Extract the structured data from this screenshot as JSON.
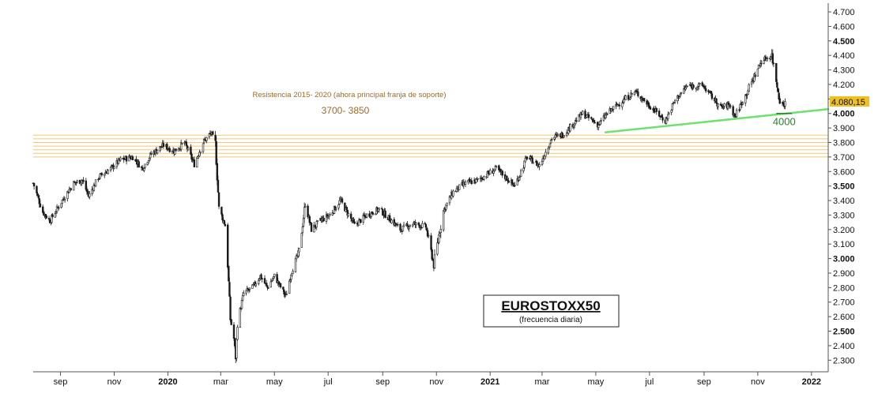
{
  "chart_data": {
    "type": "candlestick",
    "title": "EUROSTOXX50",
    "subtitle": "(frecuencia diaria)",
    "ylim": [
      2220,
      4760
    ],
    "y_ticks": [
      {
        "value": 2300,
        "label": "2.300",
        "bold": false
      },
      {
        "value": 2400,
        "label": "2.400",
        "bold": false
      },
      {
        "value": 2500,
        "label": "2.500",
        "bold": true
      },
      {
        "value": 2600,
        "label": "2.600",
        "bold": false
      },
      {
        "value": 2700,
        "label": "2.700",
        "bold": false
      },
      {
        "value": 2800,
        "label": "2.800",
        "bold": false
      },
      {
        "value": 2900,
        "label": "2.900",
        "bold": false
      },
      {
        "value": 3000,
        "label": "3.000",
        "bold": true
      },
      {
        "value": 3100,
        "label": "3.100",
        "bold": false
      },
      {
        "value": 3200,
        "label": "3.200",
        "bold": false
      },
      {
        "value": 3300,
        "label": "3.300",
        "bold": false
      },
      {
        "value": 3400,
        "label": "3.400",
        "bold": false
      },
      {
        "value": 3500,
        "label": "3.500",
        "bold": true
      },
      {
        "value": 3600,
        "label": "3.600",
        "bold": false
      },
      {
        "value": 3700,
        "label": "3.700",
        "bold": false
      },
      {
        "value": 3800,
        "label": "3.800",
        "bold": false
      },
      {
        "value": 3900,
        "label": "3.900",
        "bold": false
      },
      {
        "value": 4000,
        "label": "4.000",
        "bold": true
      },
      {
        "value": 4100,
        "label": "4.100",
        "bold": false
      },
      {
        "value": 4200,
        "label": "4.200",
        "bold": false
      },
      {
        "value": 4300,
        "label": "4.300",
        "bold": false
      },
      {
        "value": 4400,
        "label": "4.400",
        "bold": false
      },
      {
        "value": 4500,
        "label": "4.500",
        "bold": true
      },
      {
        "value": 4600,
        "label": "4.600",
        "bold": false
      },
      {
        "value": 4700,
        "label": "4.700",
        "bold": false
      }
    ],
    "x_range": [
      "2019-08-01",
      "2022-01-20"
    ],
    "x_ticks": [
      {
        "date": "2019-09-01",
        "label": "sep",
        "bold": false
      },
      {
        "date": "2019-11-01",
        "label": "nov",
        "bold": false
      },
      {
        "date": "2020-01-01",
        "label": "2020",
        "bold": true
      },
      {
        "date": "2020-03-01",
        "label": "mar",
        "bold": false
      },
      {
        "date": "2020-05-01",
        "label": "may",
        "bold": false
      },
      {
        "date": "2020-07-01",
        "label": "jul",
        "bold": false
      },
      {
        "date": "2020-09-01",
        "label": "sep",
        "bold": false
      },
      {
        "date": "2020-11-01",
        "label": "nov",
        "bold": false
      },
      {
        "date": "2021-01-01",
        "label": "2021",
        "bold": true
      },
      {
        "date": "2021-03-01",
        "label": "mar",
        "bold": false
      },
      {
        "date": "2021-05-01",
        "label": "may",
        "bold": false
      },
      {
        "date": "2021-07-01",
        "label": "jul",
        "bold": false
      },
      {
        "date": "2021-09-01",
        "label": "sep",
        "bold": false
      },
      {
        "date": "2021-11-01",
        "label": "nov",
        "bold": false
      },
      {
        "date": "2022-01-01",
        "label": "2022",
        "bold": true
      }
    ],
    "series": [
      {
        "values": [
          [
            "2019-08-01",
            3520
          ],
          [
            "2019-08-12",
            3320
          ],
          [
            "2019-08-20",
            3260
          ],
          [
            "2019-08-27",
            3330
          ],
          [
            "2019-09-05",
            3420
          ],
          [
            "2019-09-16",
            3520
          ],
          [
            "2019-09-26",
            3540
          ],
          [
            "2019-10-03",
            3430
          ],
          [
            "2019-10-14",
            3560
          ],
          [
            "2019-10-28",
            3620
          ],
          [
            "2019-11-08",
            3680
          ],
          [
            "2019-11-22",
            3700
          ],
          [
            "2019-12-03",
            3620
          ],
          [
            "2019-12-13",
            3720
          ],
          [
            "2019-12-27",
            3780
          ],
          [
            "2020-01-08",
            3740
          ],
          [
            "2020-01-20",
            3800
          ],
          [
            "2020-01-31",
            3650
          ],
          [
            "2020-02-10",
            3800
          ],
          [
            "2020-02-19",
            3865
          ],
          [
            "2020-02-24",
            3790
          ],
          [
            "2020-02-28",
            3350
          ],
          [
            "2020-03-06",
            3230
          ],
          [
            "2020-03-09",
            2960
          ],
          [
            "2020-03-12",
            2580
          ],
          [
            "2020-03-16",
            2450
          ],
          [
            "2020-03-18",
            2320
          ],
          [
            "2020-03-20",
            2550
          ],
          [
            "2020-03-27",
            2760
          ],
          [
            "2020-04-06",
            2800
          ],
          [
            "2020-04-15",
            2880
          ],
          [
            "2020-04-23",
            2800
          ],
          [
            "2020-05-01",
            2880
          ],
          [
            "2020-05-14",
            2740
          ],
          [
            "2020-05-20",
            2900
          ],
          [
            "2020-05-29",
            3050
          ],
          [
            "2020-06-05",
            3380
          ],
          [
            "2020-06-12",
            3200
          ],
          [
            "2020-06-22",
            3260
          ],
          [
            "2020-07-03",
            3300
          ],
          [
            "2020-07-15",
            3400
          ],
          [
            "2020-07-31",
            3230
          ],
          [
            "2020-08-14",
            3300
          ],
          [
            "2020-08-28",
            3340
          ],
          [
            "2020-09-08",
            3280
          ],
          [
            "2020-09-21",
            3200
          ],
          [
            "2020-10-05",
            3240
          ],
          [
            "2020-10-20",
            3220
          ],
          [
            "2020-10-29",
            2960
          ],
          [
            "2020-11-09",
            3330
          ],
          [
            "2020-11-20",
            3460
          ],
          [
            "2020-12-04",
            3520
          ],
          [
            "2020-12-18",
            3540
          ],
          [
            "2021-01-08",
            3620
          ],
          [
            "2021-01-29",
            3500
          ],
          [
            "2021-02-12",
            3700
          ],
          [
            "2021-02-26",
            3640
          ],
          [
            "2021-03-12",
            3830
          ],
          [
            "2021-03-26",
            3860
          ],
          [
            "2021-04-16",
            4000
          ],
          [
            "2021-05-04",
            3920
          ],
          [
            "2021-05-14",
            4000
          ],
          [
            "2021-06-01",
            4090
          ],
          [
            "2021-06-15",
            4150
          ],
          [
            "2021-06-30",
            4060
          ],
          [
            "2021-07-19",
            3950
          ],
          [
            "2021-07-30",
            4090
          ],
          [
            "2021-08-13",
            4190
          ],
          [
            "2021-08-31",
            4190
          ],
          [
            "2021-09-20",
            4040
          ],
          [
            "2021-09-30",
            4060
          ],
          [
            "2021-10-06",
            3980
          ],
          [
            "2021-10-20",
            4150
          ],
          [
            "2021-11-05",
            4360
          ],
          [
            "2021-11-17",
            4400
          ],
          [
            "2021-11-26",
            4090
          ],
          [
            "2021-11-30",
            4060
          ],
          [
            "2021-12-03",
            4080
          ]
        ]
      }
    ],
    "annotations": {
      "resistance_label": "Resistencia 2015- 2020 (ahora principal franja de soporte)",
      "resistance_zone_label": "3700- 3850",
      "resistance_zone": [
        3700,
        3850
      ],
      "support_label": "4000",
      "trendline": [
        [
          "2021-05-12",
          3870
        ],
        [
          "2022-01-20",
          4030
        ]
      ],
      "support_segment": [
        [
          "2021-11-22",
          4000
        ],
        [
          "2021-12-10",
          4000
        ]
      ],
      "last_price": 4080.15,
      "last_price_label": "4.080,15"
    },
    "colors": {
      "candles": "#1a1a1a",
      "resistance_lines": "#f0c878",
      "resistance_text": "#a0692a",
      "trendline": "#70e070",
      "support_text": "#2e7d32",
      "price_tag": "#f0c020"
    }
  }
}
